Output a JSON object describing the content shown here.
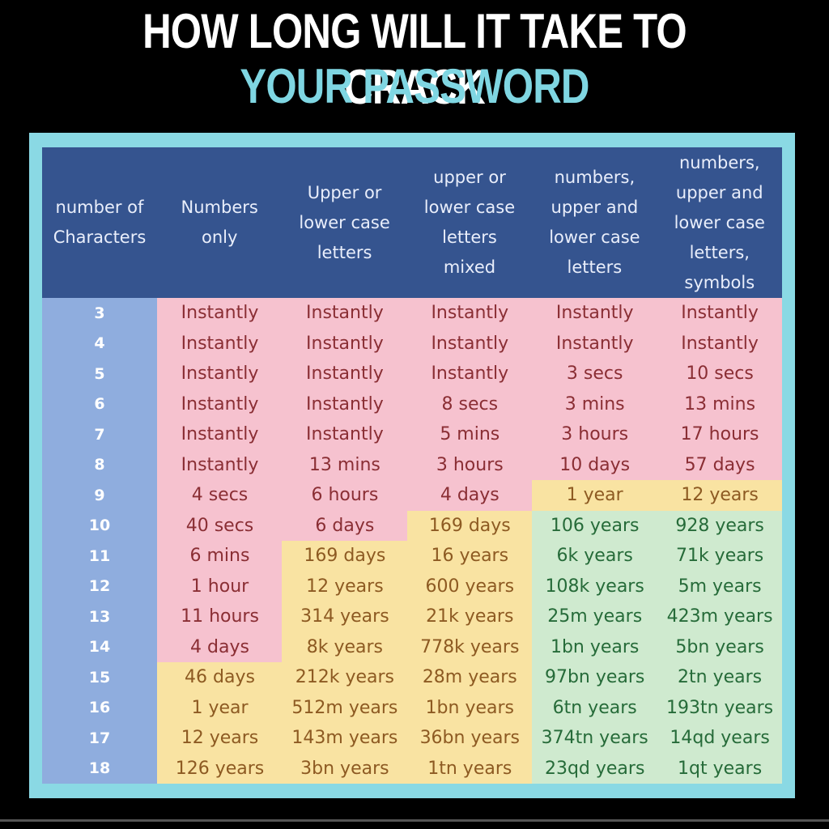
{
  "title": {
    "line1": "HOW LONG WILL IT TAKE TO CRACK",
    "line2": "YOUR PASSWORD"
  },
  "colors": {
    "background": "#000000",
    "frame": "#8ad9e4",
    "header": "#35548f",
    "number_column": "#8fadde",
    "instant_zone": "#f6c2cf",
    "medium_zone": "#f9e3a2",
    "long_zone": "#cfeacf"
  },
  "table": {
    "headers": [
      "number of\nCharacters",
      "Numbers\nonly",
      "Upper or\nlower case\nletters",
      "upper or\nlower case\nletters\nmixed",
      "numbers,\nupper and\nlower case\nletters",
      "numbers,\nupper and\nlower case\nletters,\nsymbols"
    ],
    "rows": [
      {
        "chars": "3",
        "values": [
          "Instantly",
          "Instantly",
          "Instantly",
          "Instantly",
          "Instantly"
        ]
      },
      {
        "chars": "4",
        "values": [
          "Instantly",
          "Instantly",
          "Instantly",
          "Instantly",
          "Instantly"
        ]
      },
      {
        "chars": "5",
        "values": [
          "Instantly",
          "Instantly",
          "Instantly",
          "3 secs",
          "10 secs"
        ]
      },
      {
        "chars": "6",
        "values": [
          "Instantly",
          "Instantly",
          "8 secs",
          "3 mins",
          "13 mins"
        ]
      },
      {
        "chars": "7",
        "values": [
          "Instantly",
          "Instantly",
          "5 mins",
          "3 hours",
          "17 hours"
        ]
      },
      {
        "chars": "8",
        "values": [
          "Instantly",
          "13 mins",
          "3 hours",
          "10 days",
          "57 days"
        ]
      },
      {
        "chars": "9",
        "values": [
          "4 secs",
          "6 hours",
          "4 days",
          "1 year",
          "12 years"
        ]
      },
      {
        "chars": "10",
        "values": [
          "40 secs",
          "6 days",
          "169 days",
          "106 years",
          "928 years"
        ]
      },
      {
        "chars": "11",
        "values": [
          "6 mins",
          "169 days",
          "16 years",
          "6k years",
          "71k years"
        ]
      },
      {
        "chars": "12",
        "values": [
          "1 hour",
          "12 years",
          "600 years",
          "108k years",
          "5m years"
        ]
      },
      {
        "chars": "13",
        "values": [
          "11 hours",
          "314 years",
          "21k years",
          "25m years",
          "423m years"
        ]
      },
      {
        "chars": "14",
        "values": [
          "4 days",
          "8k years",
          "778k years",
          "1bn years",
          "5bn years"
        ]
      },
      {
        "chars": "15",
        "values": [
          "46 days",
          "212k years",
          "28m years",
          "97bn years",
          "2tn years"
        ]
      },
      {
        "chars": "16",
        "values": [
          "1 year",
          "512m years",
          "1bn years",
          "6tn years",
          "193tn years"
        ]
      },
      {
        "chars": "17",
        "values": [
          "12 years",
          "143m years",
          "36bn years",
          "374tn years",
          "14qd years"
        ]
      },
      {
        "chars": "18",
        "values": [
          "126 years",
          "3bn years",
          "1tn years",
          "23qd years",
          "1qt years"
        ]
      }
    ],
    "yellow_from_row": [
      12,
      8,
      7,
      6,
      6
    ],
    "green_from_row": [
      null,
      null,
      null,
      7,
      7
    ]
  }
}
